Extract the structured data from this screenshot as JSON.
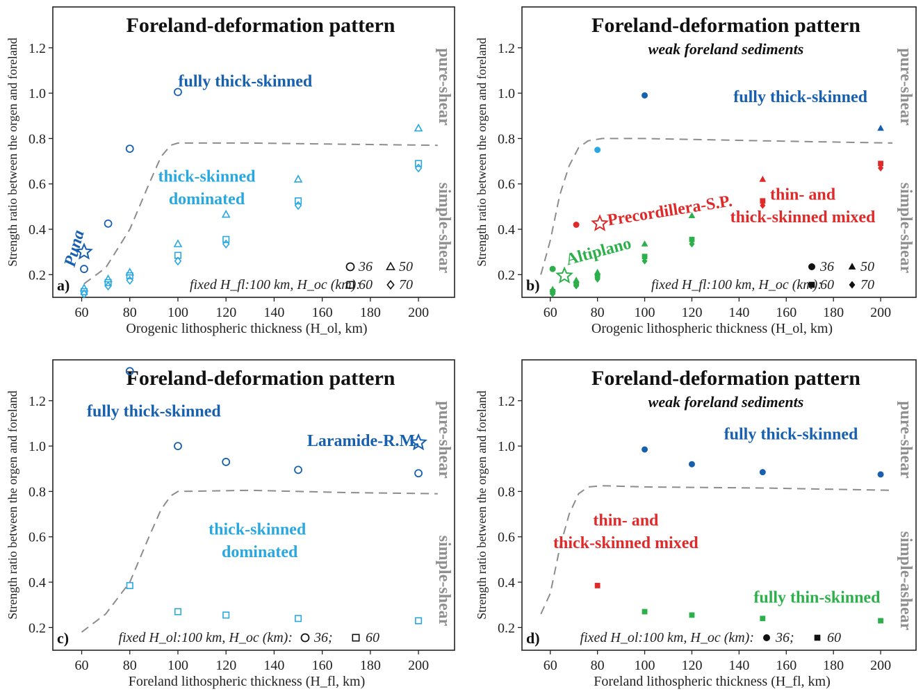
{
  "chart_data": [
    {
      "type": "scatter",
      "panel": "a)",
      "title": "Foreland-deformation pattern",
      "subtitle": "",
      "xlabel": "Orogenic lithospheric thickness (H_ol, km)",
      "ylabel": "Strength ratio between the orgen and foreland",
      "xlim": [
        48,
        215
      ],
      "ylim": [
        0.1,
        1.38
      ],
      "xticks": [
        60,
        80,
        100,
        120,
        140,
        160,
        180,
        200
      ],
      "yticks": [
        0.2,
        0.4,
        0.6,
        0.8,
        1.0,
        1.2
      ],
      "filled": false,
      "regime_labels": {
        "upper": "pure-shear",
        "lower": "simple-shear"
      },
      "legend": {
        "caption": "fixed H_fl:100 km, H_oc (km):",
        "entries": [
          {
            "marker": "circle",
            "label": "36"
          },
          {
            "marker": "triangle",
            "label": "50"
          },
          {
            "marker": "square",
            "label": "60"
          },
          {
            "marker": "diamond",
            "label": "70"
          }
        ]
      },
      "boundary": {
        "x": [
          61,
          70,
          80,
          88,
          93,
          97,
          100,
          130,
          170,
          208
        ],
        "y": [
          0.16,
          0.23,
          0.4,
          0.6,
          0.72,
          0.77,
          0.78,
          0.78,
          0.775,
          0.77
        ]
      },
      "annotations": [
        {
          "text": "fully thick-skinned",
          "x": 128,
          "y": 1.03,
          "color": "#1760b0"
        },
        {
          "text": "thick-skinned",
          "x": 112,
          "y": 0.61,
          "color": "#29a8e0"
        },
        {
          "text": "dominated",
          "x": 112,
          "y": 0.51,
          "color": "#29a8e0"
        },
        {
          "text": "Puna",
          "x": 59,
          "y": 0.31,
          "color": "#1760b0",
          "rotate": -75,
          "italic": true
        }
      ],
      "stars": [
        {
          "x": 61,
          "y": 0.3,
          "color": "#1760b0"
        }
      ],
      "series": [
        {
          "name": "36",
          "marker": "circle",
          "color": "#1760b0",
          "x": [
            61,
            71,
            80,
            100
          ],
          "y": [
            0.225,
            0.425,
            0.755,
            1.005
          ]
        },
        {
          "name": "50",
          "marker": "triangle",
          "color": "#29a8e0",
          "x": [
            61,
            71,
            80,
            100,
            120,
            150,
            200
          ],
          "y": [
            0.14,
            0.18,
            0.21,
            0.335,
            0.465,
            0.62,
            0.845
          ]
        },
        {
          "name": "60",
          "marker": "square",
          "color": "#29a8e0",
          "x": [
            61,
            71,
            80,
            100,
            120,
            150,
            200
          ],
          "y": [
            0.125,
            0.165,
            0.195,
            0.285,
            0.355,
            0.525,
            0.69
          ]
        },
        {
          "name": "70",
          "marker": "diamond",
          "color": "#29a8e0",
          "x": [
            61,
            71,
            80,
            100,
            120,
            150,
            200
          ],
          "y": [
            0.115,
            0.15,
            0.175,
            0.26,
            0.335,
            0.505,
            0.67
          ]
        }
      ]
    },
    {
      "type": "scatter",
      "panel": "b)",
      "title": "Foreland-deformation pattern",
      "subtitle": "weak foreland sediments",
      "xlabel": "Orogenic lithospheric thickness (H_ol, km)",
      "ylabel": "Strength ratio between the orgen and foreland",
      "xlim": [
        48,
        215
      ],
      "ylim": [
        0.1,
        1.38
      ],
      "xticks": [
        60,
        80,
        100,
        120,
        140,
        160,
        180,
        200
      ],
      "yticks": [
        0.2,
        0.4,
        0.6,
        0.8,
        1.0,
        1.2
      ],
      "filled": true,
      "regime_labels": {
        "upper": "pure-shear",
        "lower": "simple-shear"
      },
      "legend": {
        "caption": "fixed H_fl:100 km, H_oc (km):",
        "entries": [
          {
            "marker": "circle",
            "label": "36"
          },
          {
            "marker": "triangle",
            "label": "50"
          },
          {
            "marker": "square",
            "label": "60"
          },
          {
            "marker": "diamond",
            "label": "70"
          }
        ]
      },
      "boundary": {
        "x": [
          56,
          60,
          64,
          68,
          72,
          76,
          82,
          100,
          150,
          205
        ],
        "y": [
          0.2,
          0.35,
          0.55,
          0.68,
          0.76,
          0.79,
          0.8,
          0.8,
          0.79,
          0.78
        ]
      },
      "annotations": [
        {
          "text": "fully thick-skinned",
          "x": 166,
          "y": 0.96,
          "color": "#1760b0"
        },
        {
          "text": "Precordillera-S.P.",
          "x": 111,
          "y": 0.46,
          "color": "#e02a2a",
          "rotate": -9
        },
        {
          "text": "thin- and",
          "x": 167,
          "y": 0.53,
          "color": "#e02a2a"
        },
        {
          "text": "thick-skinned mixed",
          "x": 167,
          "y": 0.43,
          "color": "#e02a2a"
        },
        {
          "text": "Altiplano",
          "x": 81,
          "y": 0.28,
          "color": "#2db04b",
          "rotate": -15
        }
      ],
      "stars": [
        {
          "x": 81,
          "y": 0.425,
          "color": "#e02a2a"
        },
        {
          "x": 66,
          "y": 0.195,
          "color": "#2db04b"
        }
      ],
      "series": [
        {
          "name": "36",
          "marker": "circle",
          "color": "#1760b0",
          "x": [
            100,
            80,
            71,
            61
          ],
          "y": [
            0.99,
            0.75,
            0.42,
            0.225
          ],
          "colors": [
            "#1760b0",
            "#29a8e0",
            "#e02a2a",
            "#2db04b"
          ]
        },
        {
          "name": "50",
          "marker": "triangle",
          "color": "#e02a2a",
          "x": [
            200,
            150,
            120,
            100,
            80,
            71,
            61
          ],
          "y": [
            0.845,
            0.62,
            0.46,
            0.335,
            0.21,
            0.175,
            0.135
          ],
          "colors": [
            "#1760b0",
            "#e02a2a",
            "#2db04b",
            "#2db04b",
            "#2db04b",
            "#2db04b",
            "#2db04b"
          ]
        },
        {
          "name": "60",
          "marker": "square",
          "color": "#e02a2a",
          "x": [
            200,
            150,
            120,
            100,
            80,
            71,
            61
          ],
          "y": [
            0.69,
            0.525,
            0.355,
            0.28,
            0.195,
            0.16,
            0.125
          ],
          "colors": [
            "#e02a2a",
            "#e02a2a",
            "#2db04b",
            "#2db04b",
            "#2db04b",
            "#2db04b",
            "#2db04b"
          ]
        },
        {
          "name": "70",
          "marker": "diamond",
          "color": "#e02a2a",
          "x": [
            200,
            150,
            120,
            100,
            80,
            71,
            61
          ],
          "y": [
            0.67,
            0.505,
            0.335,
            0.26,
            0.18,
            0.15,
            0.115
          ],
          "colors": [
            "#e02a2a",
            "#e02a2a",
            "#2db04b",
            "#2db04b",
            "#2db04b",
            "#2db04b",
            "#2db04b"
          ]
        }
      ]
    },
    {
      "type": "scatter",
      "panel": "c)",
      "title": "Foreland-deformation pattern",
      "subtitle": "",
      "xlabel": "Foreland lithospheric thickness (H_fl, km)",
      "ylabel": "Strength ratio between the orgen and foreland",
      "xlim": [
        48,
        215
      ],
      "ylim": [
        0.1,
        1.38
      ],
      "xticks": [
        60,
        80,
        100,
        120,
        140,
        160,
        180,
        200
      ],
      "yticks": [
        0.2,
        0.4,
        0.6,
        0.8,
        1.0,
        1.2
      ],
      "filled": false,
      "regime_labels": {
        "upper": "pure-shear",
        "lower": "simple-shear"
      },
      "legend": {
        "caption": "fixed H_ol:100 km, H_oc (km):",
        "entries": [
          {
            "marker": "circle",
            "label": "36;"
          },
          {
            "marker": "square",
            "label": "60"
          }
        ]
      },
      "boundary": {
        "x": [
          60,
          70,
          80,
          88,
          93,
          97,
          100,
          130,
          170,
          208
        ],
        "y": [
          0.18,
          0.26,
          0.4,
          0.6,
          0.72,
          0.78,
          0.8,
          0.805,
          0.795,
          0.79
        ]
      },
      "annotations": [
        {
          "text": "fully thick-skinned",
          "x": 90,
          "y": 1.13,
          "color": "#1760b0"
        },
        {
          "text": "Laramide-R.M.",
          "x": 177,
          "y": 1.0,
          "color": "#1760b0"
        },
        {
          "text": "thick-skinned",
          "x": 133,
          "y": 0.61,
          "color": "#29a8e0"
        },
        {
          "text": "dominated",
          "x": 134,
          "y": 0.51,
          "color": "#29a8e0"
        }
      ],
      "stars": [
        {
          "x": 200,
          "y": 1.015,
          "color": "#1760b0"
        }
      ],
      "series": [
        {
          "name": "36",
          "marker": "circle",
          "color": "#1760b0",
          "x": [
            80,
            100,
            120,
            150,
            200
          ],
          "y": [
            1.33,
            1.0,
            0.93,
            0.895,
            0.88
          ]
        },
        {
          "name": "60",
          "marker": "square",
          "color": "#29a8e0",
          "x": [
            80,
            100,
            120,
            150,
            200
          ],
          "y": [
            0.385,
            0.27,
            0.255,
            0.24,
            0.23
          ]
        }
      ]
    },
    {
      "type": "scatter",
      "panel": "d)",
      "title": "Foreland-deformation pattern",
      "subtitle": "weak foreland sediments",
      "xlabel": "Foreland lithospheric thickness (H_fl, km)",
      "ylabel": "Strength ratio between the orgen and foreland",
      "xlim": [
        48,
        215
      ],
      "ylim": [
        0.1,
        1.38
      ],
      "xticks": [
        60,
        80,
        100,
        120,
        140,
        160,
        180,
        200
      ],
      "yticks": [
        0.2,
        0.4,
        0.6,
        0.8,
        1.0,
        1.2
      ],
      "filled": true,
      "regime_labels": {
        "upper": "pure-shear",
        "lower": "simple-ashear"
      },
      "legend": {
        "caption": "fixed H_ol:100 km, H_oc (km):",
        "entries": [
          {
            "marker": "circle",
            "label": "36;"
          },
          {
            "marker": "square",
            "label": "60"
          }
        ]
      },
      "boundary": {
        "x": [
          56,
          60,
          64,
          68,
          72,
          76,
          82,
          100,
          150,
          205
        ],
        "y": [
          0.26,
          0.35,
          0.55,
          0.7,
          0.79,
          0.82,
          0.825,
          0.82,
          0.815,
          0.805
        ]
      },
      "annotations": [
        {
          "text": "fully thick-skinned",
          "x": 162,
          "y": 1.03,
          "color": "#1760b0"
        },
        {
          "text": "thin- and",
          "x": 92,
          "y": 0.65,
          "color": "#e02a2a"
        },
        {
          "text": "thick-skinned mixed",
          "x": 92,
          "y": 0.55,
          "color": "#e02a2a"
        },
        {
          "text": "fully thin-skinned",
          "x": 173,
          "y": 0.31,
          "color": "#2db04b"
        }
      ],
      "stars": [],
      "series": [
        {
          "name": "36",
          "marker": "circle",
          "color": "#1760b0",
          "x": [
            100,
            120,
            150,
            200
          ],
          "y": [
            0.985,
            0.92,
            0.885,
            0.875
          ]
        },
        {
          "name": "60",
          "marker": "square",
          "color": "#2db04b",
          "x": [
            80,
            100,
            120,
            150,
            200
          ],
          "y": [
            0.385,
            0.27,
            0.255,
            0.24,
            0.23
          ],
          "colors": [
            "#e02a2a",
            "#2db04b",
            "#2db04b",
            "#2db04b",
            "#2db04b"
          ]
        }
      ]
    }
  ]
}
